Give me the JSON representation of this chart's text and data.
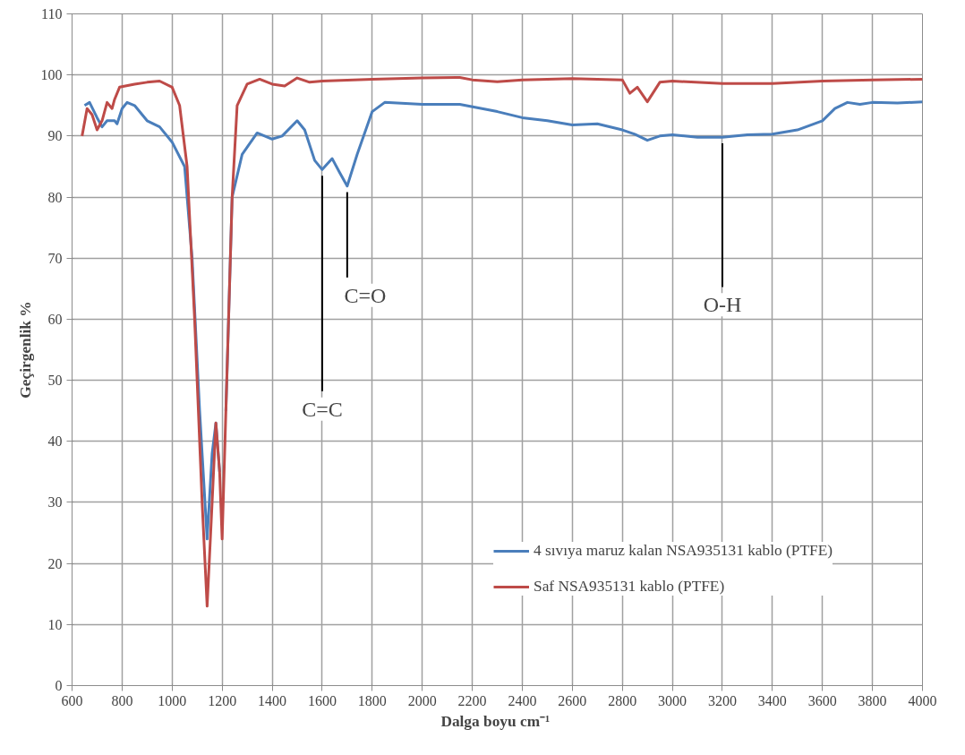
{
  "chart_data": {
    "type": "line",
    "xlabel": "Dalga  boyu cm⁻¹",
    "ylabel": "Geçirgenlik %",
    "xlim": [
      600,
      4000
    ],
    "ylim": [
      0,
      110
    ],
    "xticks": [
      600,
      800,
      1000,
      1200,
      1400,
      1600,
      1800,
      2000,
      2200,
      2400,
      2600,
      2800,
      3000,
      3200,
      3400,
      3600,
      3800,
      4000
    ],
    "yticks": [
      0,
      10,
      20,
      30,
      40,
      50,
      60,
      70,
      80,
      90,
      100,
      110
    ],
    "grid": true,
    "legend": "bottom right",
    "line_style": "solid",
    "marker": "none",
    "series": [
      {
        "name": "4 sıvıya maruz kalan NSA935131 kablo (PTFE)",
        "color": "#4a7ebb",
        "x": [
          650,
          670,
          700,
          720,
          740,
          770,
          780,
          800,
          820,
          850,
          900,
          950,
          1000,
          1050,
          1080,
          1110,
          1140,
          1160,
          1175,
          1190,
          1200,
          1215,
          1240,
          1280,
          1340,
          1400,
          1440,
          1500,
          1530,
          1570,
          1600,
          1640,
          1670,
          1700,
          1740,
          1800,
          1850,
          2000,
          2150,
          2300,
          2400,
          2500,
          2600,
          2700,
          2800,
          2850,
          2900,
          2950,
          3000,
          3100,
          3200,
          3300,
          3400,
          3500,
          3600,
          3650,
          3700,
          3750,
          3800,
          3900,
          4000
        ],
        "values": [
          95,
          95.5,
          93,
          91.5,
          92.5,
          92.5,
          92,
          94.5,
          95.5,
          95,
          92.5,
          91.5,
          89,
          85,
          70,
          45,
          24,
          38,
          43,
          35,
          null,
          45,
          80,
          87,
          90.5,
          89.5,
          90,
          92.5,
          91,
          86,
          84.5,
          86.3,
          84,
          81.8,
          87,
          94,
          95.5,
          95.2,
          95.2,
          94,
          93,
          92.5,
          91.8,
          92,
          91,
          90.3,
          89.3,
          90,
          90.2,
          89.8,
          89.8,
          90.2,
          90.3,
          91,
          92.5,
          94.5,
          95.5,
          95.2,
          95.5,
          95.4,
          95.6
        ]
      },
      {
        "name": "Saf NSA935131 kablo (PTFE)",
        "color": "#be4b48",
        "x": [
          640,
          660,
          680,
          700,
          720,
          740,
          760,
          770,
          790,
          850,
          900,
          950,
          1000,
          1030,
          1060,
          1090,
          1120,
          1140,
          1160,
          1175,
          1190,
          1200,
          1215,
          1240,
          1260,
          1300,
          1350,
          1400,
          1450,
          1500,
          1550,
          1600,
          1800,
          2000,
          2150,
          2200,
          2300,
          2400,
          2600,
          2800,
          2830,
          2860,
          2900,
          2950,
          3000,
          3200,
          3400,
          3600,
          3800,
          4000
        ],
        "values": [
          90,
          94.5,
          93.5,
          91,
          92.5,
          95.5,
          94.5,
          96,
          98,
          98.5,
          98.8,
          99,
          98,
          95,
          85,
          60,
          30,
          13,
          30,
          43,
          35,
          24,
          45,
          80,
          95,
          98.5,
          99.3,
          98.5,
          98.2,
          99.5,
          98.8,
          99,
          99.3,
          99.5,
          99.6,
          99.2,
          98.9,
          99.2,
          99.4,
          99.2,
          97,
          98,
          95.6,
          98.8,
          99,
          98.6,
          98.6,
          99,
          99.2,
          99.3
        ]
      }
    ],
    "annotations": [
      {
        "text": "C=C",
        "x": 1600,
        "y": 84.5
      },
      {
        "text": "C=O",
        "x": 1700,
        "y": 81.8
      },
      {
        "text": "O-H",
        "x": 3200,
        "y": 89.8
      }
    ]
  }
}
